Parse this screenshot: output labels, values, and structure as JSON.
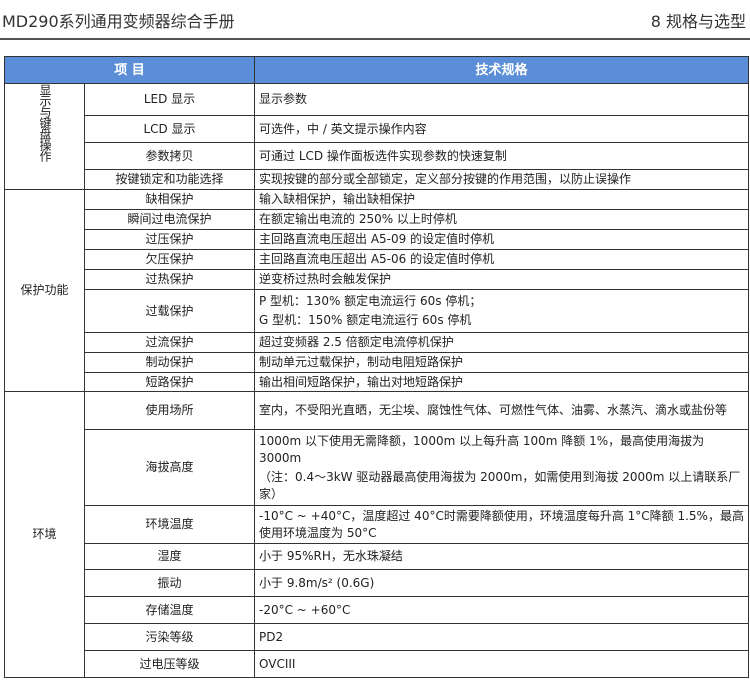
{
  "header": {
    "doc_title": "MD290系列通用变频器综合手册",
    "chapter": "8  规格与选型"
  },
  "table": {
    "columns": [
      "项 目",
      "技术规格"
    ],
    "groups": [
      {
        "name": "显示与键盘操作",
        "vertical": true,
        "rows": [
          {
            "item": "LED 显示",
            "spec": [
              "显示参数"
            ]
          },
          {
            "item": "LCD 显示",
            "spec": [
              "可选件，中 / 英文提示操作内容"
            ]
          },
          {
            "item": "参数拷贝",
            "spec": [
              "可通过 LCD 操作面板选件实现参数的快速复制"
            ]
          },
          {
            "item": "按键锁定和功能选择",
            "spec": [
              "实现按键的部分或全部锁定，定义部分按键的作用范围，以防止误操作"
            ]
          }
        ]
      },
      {
        "name": "保护功能",
        "vertical": false,
        "rows": [
          {
            "item": "缺相保护",
            "spec": [
              "输入缺相保护，输出缺相保护"
            ]
          },
          {
            "item": "瞬间过电流保护",
            "spec": [
              "在额定输出电流的 250% 以上时停机"
            ]
          },
          {
            "item": "过压保护",
            "spec": [
              "主回路直流电压超出 A5-09 的设定值时停机"
            ]
          },
          {
            "item": "欠压保护",
            "spec": [
              "主回路直流电压超出 A5-06 的设定值时停机"
            ]
          },
          {
            "item": "过热保护",
            "spec": [
              "逆变桥过热时会触发保护"
            ]
          },
          {
            "item": "过载保护",
            "spec": [
              "P 型机：130% 额定电流运行 60s 停机；",
              "G 型机：150% 额定电流运行 60s 停机"
            ]
          },
          {
            "item": "过流保护",
            "spec": [
              "超过变频器 2.5 倍额定电流停机保护"
            ]
          },
          {
            "item": "制动保护",
            "spec": [
              "制动单元过载保护，制动电阻短路保护"
            ]
          },
          {
            "item": "短路保护",
            "spec": [
              "输出相间短路保护，输出对地短路保护"
            ]
          }
        ]
      },
      {
        "name": "环境",
        "vertical": false,
        "rows": [
          {
            "item": "使用场所",
            "spec": [
              "室内，不受阳光直晒，无尘埃、腐蚀性气体、可燃性气体、油雾、水蒸汽、滴水或盐份等"
            ]
          },
          {
            "item": "海拔高度",
            "spec": [
              "1000m 以下使用无需降额，1000m 以上每升高 100m 降额 1%，最高使用海拔为 3000m",
              "（注：0.4～3kW 驱动器最高使用海拔为 2000m，如需使用到海拔 2000m 以上请联系厂家）"
            ]
          },
          {
            "item": "环境温度",
            "spec": [
              "-10°C ~ +40°C，温度超过 40°C时需要降额使用，环境温度每升高 1°C降额 1.5%，最高使用环境温度为 50°C"
            ]
          },
          {
            "item": "湿度",
            "spec": [
              "小于 95%RH，无水珠凝结"
            ]
          },
          {
            "item": "振动",
            "spec": [
              "小于 9.8m/s² (0.6G)"
            ]
          },
          {
            "item": "存储温度",
            "spec": [
              "-20°C ~ +60°C"
            ]
          },
          {
            "item": "污染等级",
            "spec": [
              "PD2"
            ]
          },
          {
            "item": "过电压等级",
            "spec": [
              "OVCIII"
            ]
          }
        ]
      }
    ]
  },
  "colors": {
    "header_bg": "#5b8ed6",
    "header_text": "#ffffff",
    "border": "#333333"
  }
}
